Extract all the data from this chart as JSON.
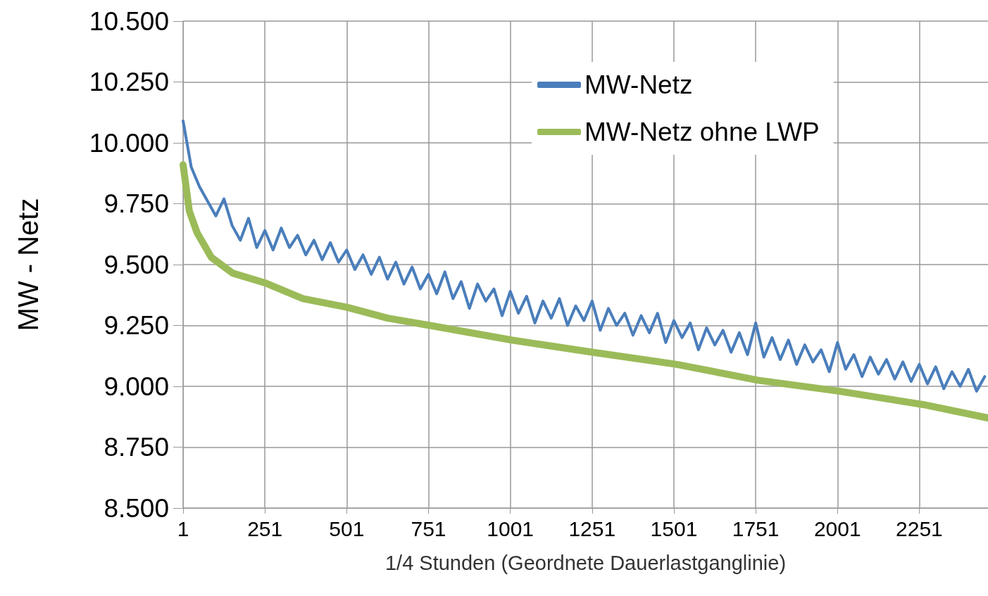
{
  "chart_data": {
    "type": "line",
    "xlabel": "1/4 Stunden (Geordnete Dauerlastganglinie)",
    "ylabel": "MW - Netz",
    "xlim": [
      1,
      2461
    ],
    "xticks": [
      1,
      251,
      501,
      751,
      1001,
      1251,
      1501,
      1751,
      2001,
      2251
    ],
    "ylim": [
      8500,
      10500
    ],
    "yticks": [
      {
        "value": 8500,
        "label": "8.500"
      },
      {
        "value": 8750,
        "label": "8.750"
      },
      {
        "value": 9000,
        "label": "9.000"
      },
      {
        "value": 9250,
        "label": "9.250"
      },
      {
        "value": 9500,
        "label": "9.500"
      },
      {
        "value": 9750,
        "label": "9.750"
      },
      {
        "value": 10000,
        "label": "10.000"
      },
      {
        "value": 10250,
        "label": "10.250"
      },
      {
        "value": 10500,
        "label": "10.500"
      }
    ],
    "grid": true,
    "legend": "top right",
    "marker": "none",
    "line_style": "solid",
    "series": [
      {
        "name": "MW-Netz",
        "color": "#4a7ebb",
        "x": [
          1,
          26,
          51,
          76,
          101,
          126,
          151,
          176,
          201,
          226,
          251,
          276,
          301,
          326,
          351,
          376,
          401,
          426,
          451,
          476,
          501,
          526,
          551,
          576,
          601,
          626,
          651,
          676,
          701,
          726,
          751,
          776,
          801,
          826,
          851,
          876,
          901,
          926,
          951,
          976,
          1001,
          1026,
          1051,
          1076,
          1101,
          1126,
          1151,
          1176,
          1201,
          1226,
          1251,
          1276,
          1301,
          1326,
          1351,
          1376,
          1401,
          1426,
          1451,
          1476,
          1501,
          1526,
          1551,
          1576,
          1601,
          1626,
          1651,
          1676,
          1701,
          1726,
          1751,
          1776,
          1801,
          1826,
          1851,
          1876,
          1901,
          1926,
          1951,
          1976,
          2001,
          2026,
          2051,
          2076,
          2101,
          2126,
          2151,
          2176,
          2201,
          2226,
          2251,
          2276,
          2301,
          2326,
          2351,
          2376,
          2401,
          2426,
          2451
        ],
        "values": [
          10090,
          9900,
          9820,
          9760,
          9700,
          9770,
          9660,
          9600,
          9690,
          9570,
          9640,
          9560,
          9650,
          9570,
          9620,
          9540,
          9600,
          9520,
          9590,
          9510,
          9560,
          9480,
          9540,
          9460,
          9530,
          9440,
          9510,
          9420,
          9490,
          9400,
          9460,
          9380,
          9470,
          9360,
          9430,
          9320,
          9420,
          9350,
          9400,
          9290,
          9390,
          9300,
          9370,
          9260,
          9350,
          9280,
          9360,
          9250,
          9330,
          9270,
          9350,
          9230,
          9320,
          9250,
          9300,
          9210,
          9290,
          9220,
          9300,
          9180,
          9270,
          9200,
          9260,
          9150,
          9240,
          9170,
          9230,
          9140,
          9220,
          9130,
          9260,
          9120,
          9200,
          9110,
          9190,
          9090,
          9170,
          9100,
          9150,
          9060,
          9180,
          9070,
          9130,
          9040,
          9120,
          9050,
          9110,
          9030,
          9100,
          9020,
          9090,
          9010,
          9080,
          8990,
          9060,
          9000,
          9070,
          8980,
          9040
        ]
      },
      {
        "name": "MW-Netz ohne LWP",
        "color": "#9bbb59",
        "x": [
          1,
          7,
          20,
          44,
          87,
          152,
          251,
          367,
          501,
          626,
          755,
          1005,
          1251,
          1510,
          1758,
          2005,
          2263,
          2461
        ],
        "values": [
          9910,
          9850,
          9720,
          9630,
          9530,
          9465,
          9425,
          9360,
          9325,
          9280,
          9250,
          9190,
          9140,
          9090,
          9025,
          8980,
          8925,
          8870
        ]
      }
    ]
  }
}
